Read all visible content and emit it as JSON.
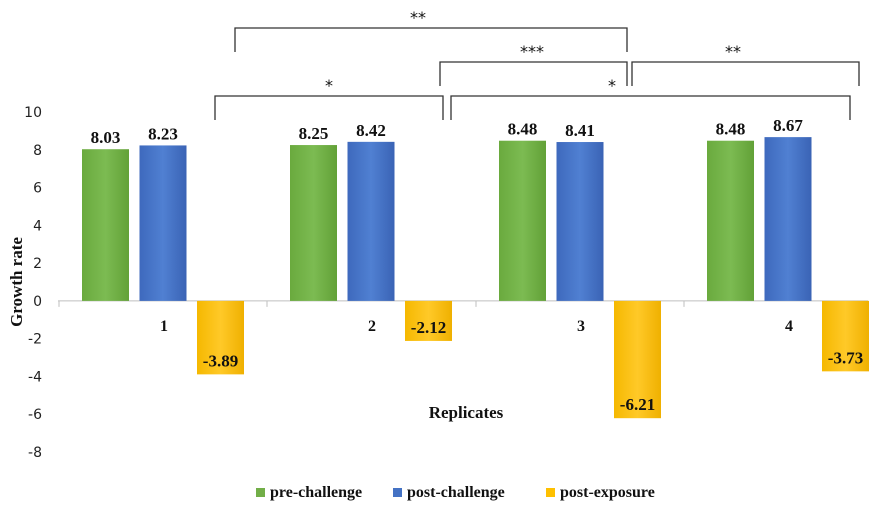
{
  "chart_data": {
    "type": "bar",
    "xlabel": "Replicates",
    "ylabel": "Growth rate",
    "ylim": [
      -8,
      10
    ],
    "yticks": [
      10,
      8,
      6,
      4,
      2,
      0,
      -2,
      -4,
      -6,
      -8
    ],
    "grid": false,
    "legend_position": "bottom",
    "categories": [
      "1",
      "2",
      "3",
      "4"
    ],
    "series": [
      {
        "name": "pre-challenge",
        "color": "#72ae48",
        "values": [
          8.03,
          8.25,
          8.48,
          8.48
        ],
        "labels": [
          "8.03",
          "8.25",
          "8.48",
          "8.48"
        ]
      },
      {
        "name": "post-challenge",
        "color": "#4472c4",
        "values": [
          8.23,
          8.42,
          8.41,
          8.67
        ],
        "labels": [
          "8.23",
          "8.42",
          "8.41",
          "8.67"
        ]
      },
      {
        "name": "post-exposure",
        "color": "#fec000",
        "values": [
          -3.89,
          -2.12,
          -6.21,
          -3.73
        ],
        "labels": [
          "-3.89",
          "-2.12",
          "-6.21",
          "-3.73"
        ]
      }
    ],
    "significance": [
      {
        "from_category": "1",
        "to_category": "3",
        "label": "**"
      },
      {
        "from_category": "2",
        "to_category": "3",
        "label": "***"
      },
      {
        "from_category": "3",
        "to_category": "4",
        "label": "**"
      },
      {
        "from_category": "1",
        "to_category": "2",
        "label": "*"
      },
      {
        "from_category": "2",
        "to_category": "4",
        "label": "*"
      }
    ]
  }
}
